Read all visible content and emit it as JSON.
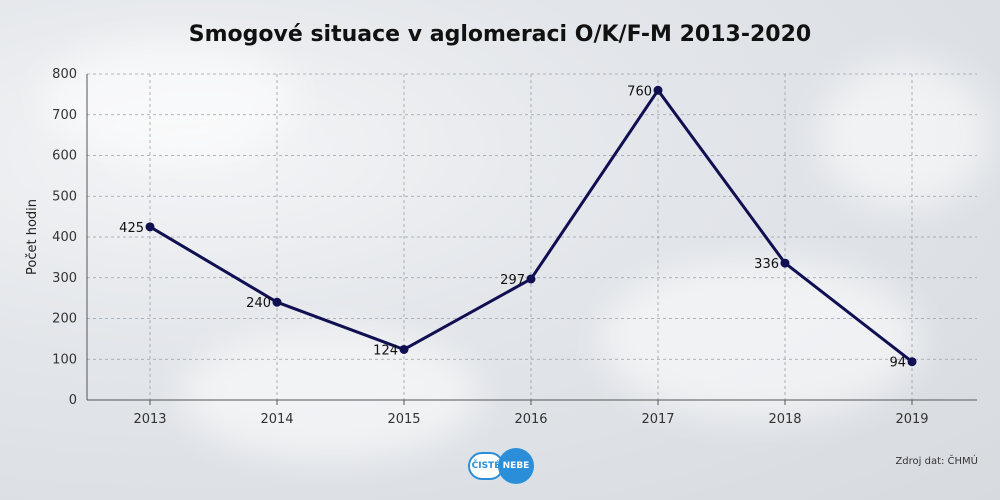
{
  "chart_data": {
    "type": "line",
    "title": "Smogové situace v aglomeraci O/K/F-M 2013-2020",
    "xlabel": "",
    "ylabel": "Počet hodin",
    "categories": [
      "2013",
      "2014",
      "2015",
      "2016",
      "2017",
      "2018",
      "2019"
    ],
    "series": [
      {
        "values": [
          425,
          240,
          124,
          297,
          760,
          336,
          94
        ]
      }
    ],
    "ylim": [
      0,
      800
    ],
    "yticks": [
      0,
      100,
      200,
      300,
      400,
      500,
      600,
      700,
      800
    ],
    "grid": true,
    "line_color": "#0f0f52"
  },
  "source": "Zdroj dat: ČHMÚ",
  "logo": {
    "left_text": "ČISTÉ",
    "right_text": "NEBE"
  }
}
